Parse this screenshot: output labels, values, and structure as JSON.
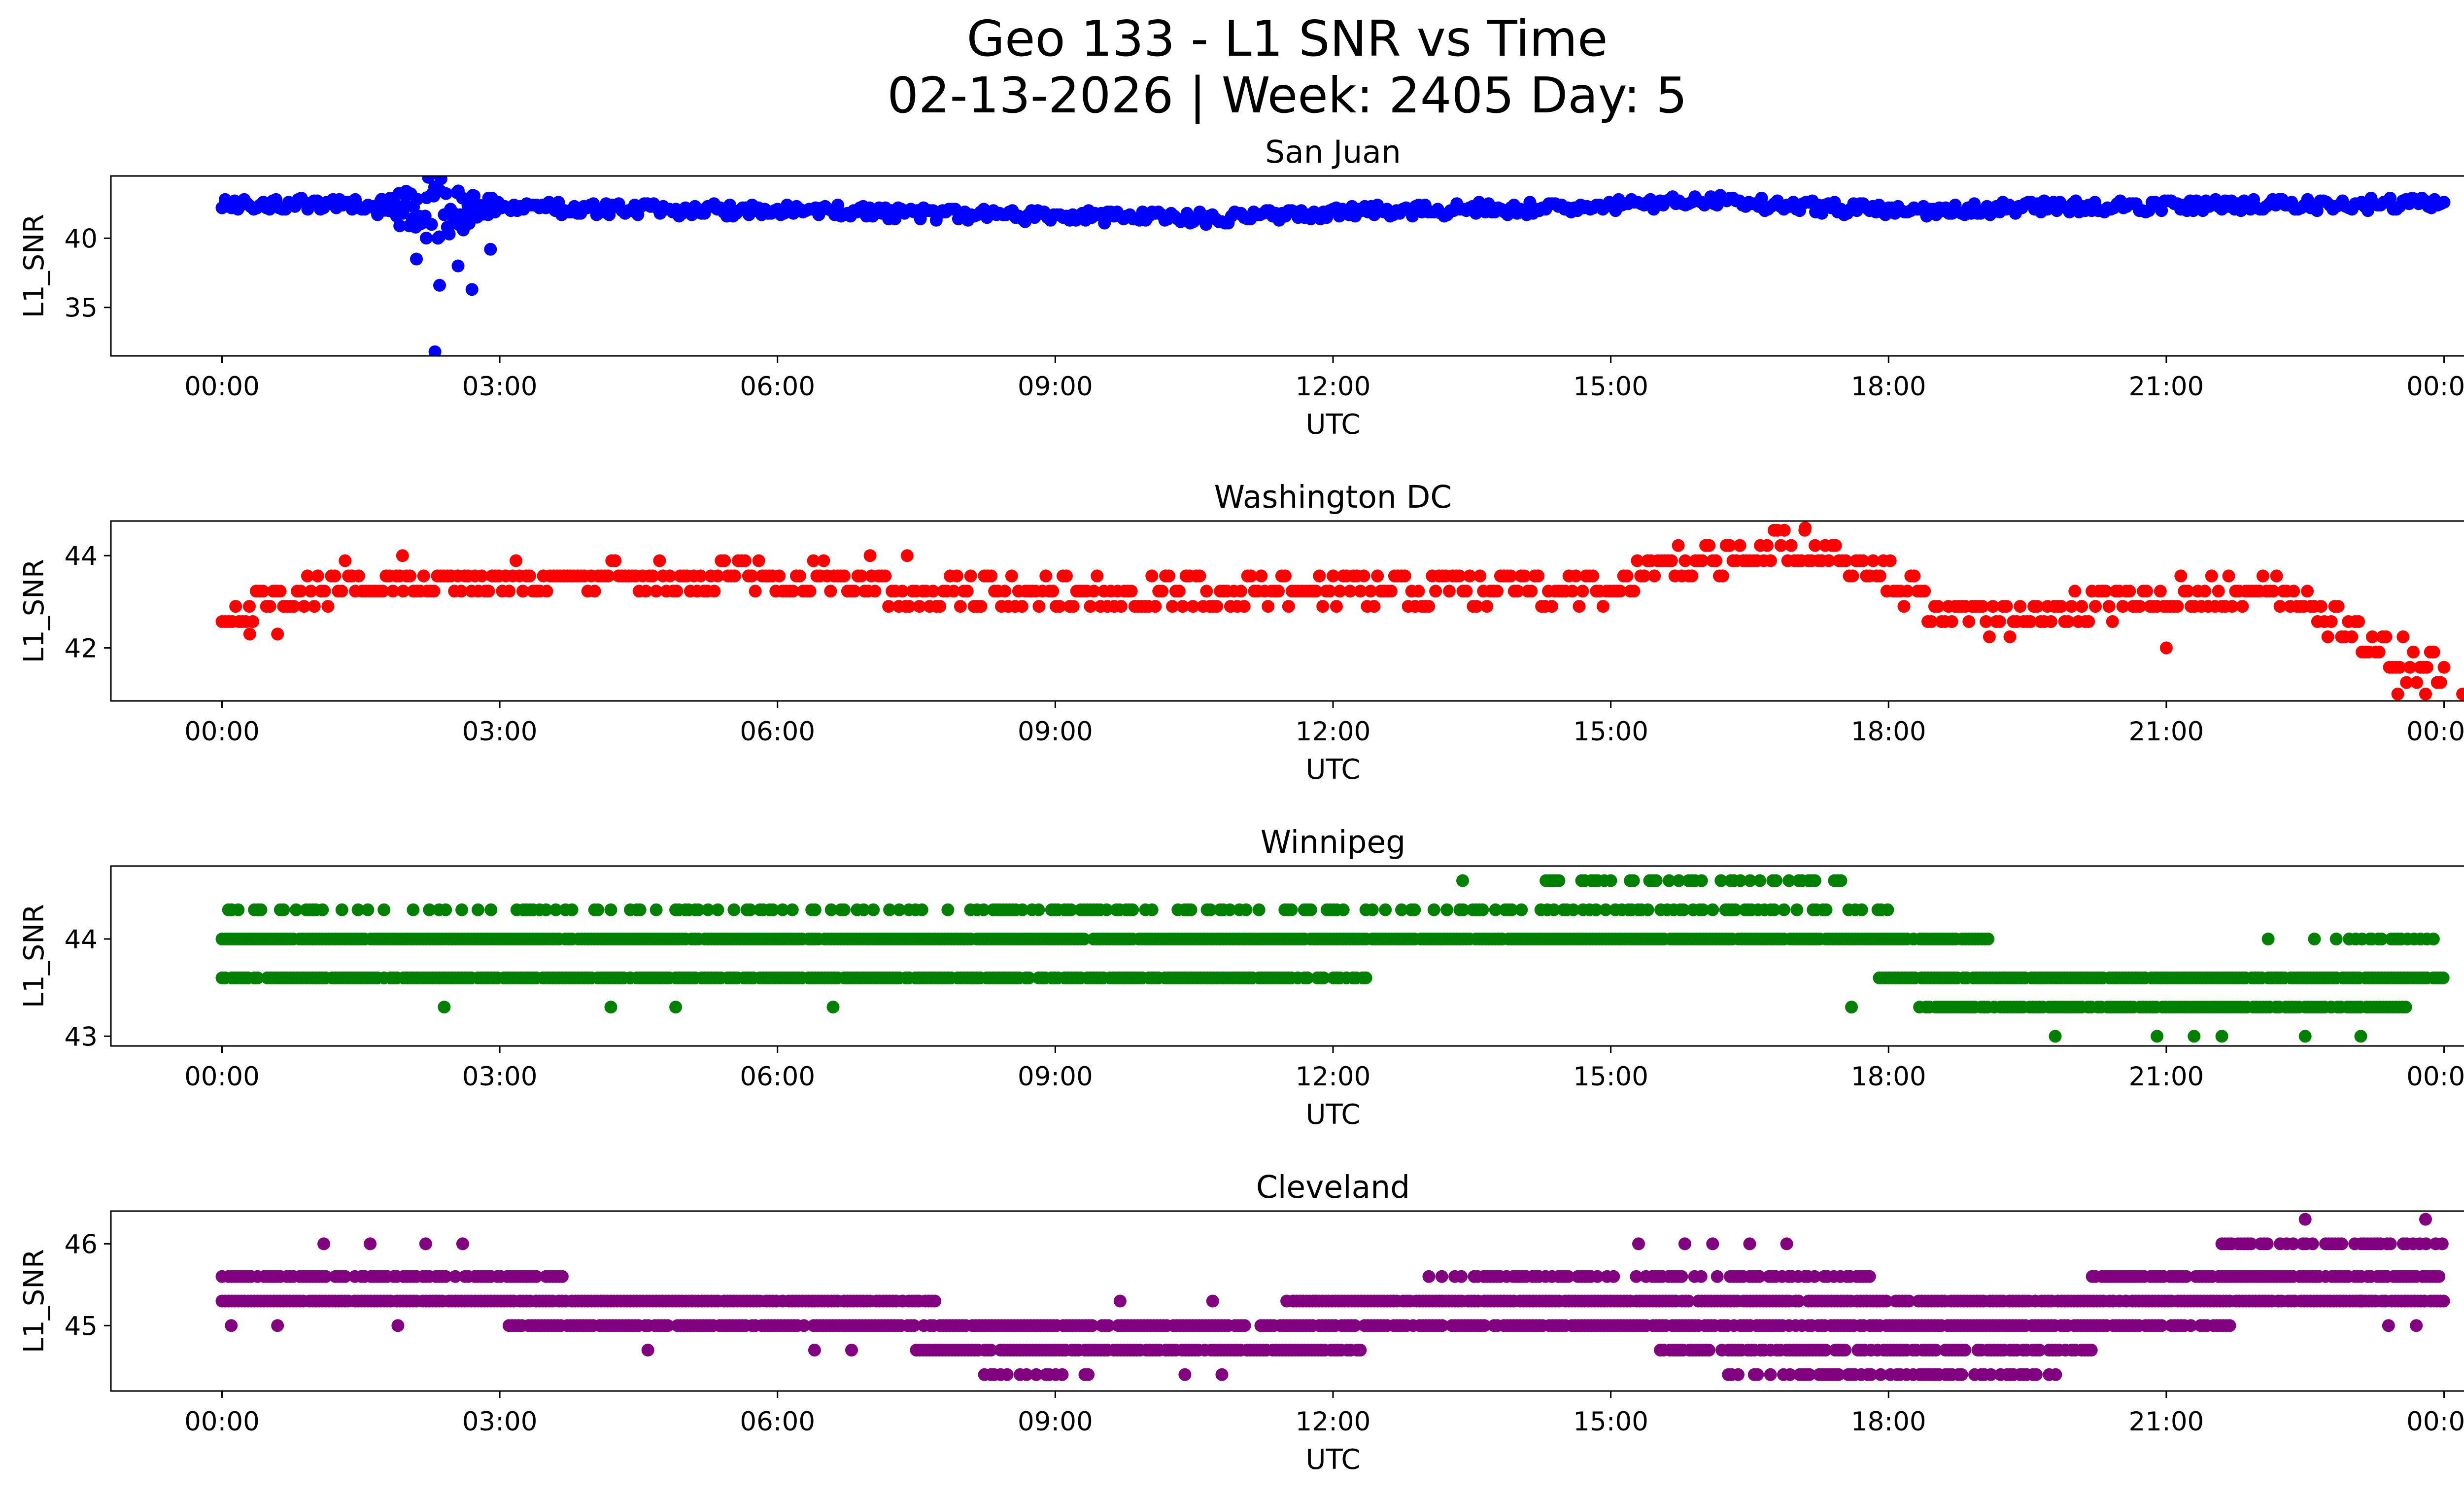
{
  "chart_data": {
    "type": "scatter",
    "title": "Geo 133 - L1 SNR vs Time",
    "subtitle": "02-13-2026 | Week: 2405 Day: 5",
    "xlabel": "UTC",
    "x_ticks": [
      "00:00",
      "03:00",
      "06:00",
      "09:00",
      "12:00",
      "15:00",
      "18:00",
      "21:00",
      "00:00"
    ],
    "x_unit": "hours UTC",
    "xlim": [
      -1.2,
      25.2
    ],
    "panels": [
      {
        "title": "San Juan",
        "ylabel": "L1_SNR",
        "color": "#0000ff",
        "ylim": [
          31.5,
          44.5
        ],
        "yticks": [
          35,
          40
        ],
        "ytick_labels": [
          "35",
          "40"
        ],
        "trend": [
          [
            0,
            42.5
          ],
          [
            1.5,
            42.5
          ],
          [
            3,
            42.2
          ],
          [
            6,
            42.0
          ],
          [
            9,
            41.6
          ],
          [
            10.5,
            41.4
          ],
          [
            12,
            41.9
          ],
          [
            15,
            42.3
          ],
          [
            16,
            42.8
          ],
          [
            17,
            42.3
          ],
          [
            18,
            42.0
          ],
          [
            20,
            42.3
          ],
          [
            24,
            42.5
          ]
        ],
        "spread": 0.45,
        "quant": 0.1,
        "n_points": 700,
        "disturbance": {
          "start": 1.6,
          "end": 3.0,
          "center": 2.3,
          "amplitude": 2.8
        },
        "outliers": [
          [
            2.3,
            31.8
          ],
          [
            2.35,
            36.6
          ],
          [
            2.7,
            36.3
          ],
          [
            2.55,
            38.0
          ],
          [
            2.1,
            38.5
          ],
          [
            2.9,
            39.2
          ]
        ]
      },
      {
        "title": "Washington DC",
        "ylabel": "L1_SNR",
        "color": "#ff0000",
        "ylim": [
          40.85,
          44.75
        ],
        "yticks": [
          42,
          44
        ],
        "ytick_labels": [
          "42",
          "44"
        ],
        "trend": [
          [
            0,
            42.8
          ],
          [
            1.2,
            43.4
          ],
          [
            5,
            43.5
          ],
          [
            6,
            43.6
          ],
          [
            7.3,
            43.3
          ],
          [
            9,
            43.1
          ],
          [
            12,
            43.3
          ],
          [
            15,
            43.3
          ],
          [
            15.5,
            43.8
          ],
          [
            17,
            44.2
          ],
          [
            18,
            43.6
          ],
          [
            18.6,
            42.8
          ],
          [
            19.5,
            42.5
          ],
          [
            20,
            42.9
          ],
          [
            21,
            43.1
          ],
          [
            22.3,
            43.2
          ],
          [
            23.3,
            42.0
          ],
          [
            24,
            41.4
          ]
        ],
        "spread": 0.35,
        "quant": 0.33,
        "n_points": 650,
        "outliers": [
          [
            1.95,
            44.0
          ],
          [
            7.0,
            44.0
          ],
          [
            7.4,
            44.0
          ],
          [
            17.1,
            44.6
          ],
          [
            21,
            42.0
          ],
          [
            23.5,
            41.0
          ],
          [
            23.8,
            41.0
          ],
          [
            24.2,
            41.0
          ],
          [
            0.3,
            42.3
          ],
          [
            0.6,
            42.3
          ]
        ]
      },
      {
        "title": "Winnipeg",
        "ylabel": "L1_SNR",
        "color": "#008000",
        "ylim": [
          42.9,
          44.75
        ],
        "yticks": [
          43,
          44
        ],
        "ytick_labels": [
          "43",
          "44"
        ],
        "levels": [
          {
            "y": 44.6,
            "start": 14.3,
            "end": 17.7,
            "density": 0.45
          },
          {
            "y": 44.3,
            "start": 0,
            "end": 18.0,
            "density": 0.4
          },
          {
            "y": 44.0,
            "start": 0,
            "end": 19.1,
            "density": 0.95
          },
          {
            "y": 44.0,
            "start": 22.8,
            "end": 24.0,
            "density": 0.5
          },
          {
            "y": 43.6,
            "start": 0,
            "end": 12.4,
            "density": 0.9
          },
          {
            "y": 43.6,
            "start": 17.9,
            "end": 24.0,
            "density": 0.95
          },
          {
            "y": 43.3,
            "start": 18.3,
            "end": 23.6,
            "density": 0.85
          }
        ],
        "outliers": [
          [
            13.4,
            44.6
          ],
          [
            2.4,
            43.3
          ],
          [
            4.2,
            43.3
          ],
          [
            4.9,
            43.3
          ],
          [
            6.6,
            43.3
          ],
          [
            17.6,
            43.3
          ],
          [
            19.8,
            43.0
          ],
          [
            20.9,
            43.0
          ],
          [
            21.3,
            43.0
          ],
          [
            21.6,
            43.0
          ],
          [
            22.5,
            43.0
          ],
          [
            23.1,
            43.0
          ],
          [
            22.1,
            44.0
          ],
          [
            22.6,
            44.0
          ],
          [
            23.2,
            44.0
          ],
          [
            0.1,
            44.3
          ],
          [
            0.4,
            44.3
          ],
          [
            0.8,
            44.3
          ]
        ]
      },
      {
        "title": "Cleveland",
        "ylabel": "L1_SNR",
        "color": "#800080",
        "ylim": [
          44.2,
          46.4
        ],
        "yticks": [
          45,
          46
        ],
        "ytick_labels": [
          "45",
          "46"
        ],
        "levels": [
          {
            "y": 46.0,
            "start": 21.6,
            "end": 24.0,
            "density": 0.7
          },
          {
            "y": 45.6,
            "start": 0,
            "end": 3.7,
            "density": 0.85
          },
          {
            "y": 45.6,
            "start": 13.0,
            "end": 17.8,
            "density": 0.6
          },
          {
            "y": 45.6,
            "start": 20.2,
            "end": 24.0,
            "density": 0.85
          },
          {
            "y": 45.3,
            "start": 0,
            "end": 7.7,
            "density": 0.95
          },
          {
            "y": 45.3,
            "start": 11.5,
            "end": 24.0,
            "density": 0.9
          },
          {
            "y": 45.0,
            "start": 3.1,
            "end": 21.7,
            "density": 0.85
          },
          {
            "y": 44.7,
            "start": 7.5,
            "end": 12.3,
            "density": 0.9
          },
          {
            "y": 44.7,
            "start": 15.5,
            "end": 20.2,
            "density": 0.7
          },
          {
            "y": 44.4,
            "start": 8.2,
            "end": 9.6,
            "density": 0.5
          },
          {
            "y": 44.4,
            "start": 16.2,
            "end": 19.9,
            "density": 0.5
          }
        ],
        "outliers": [
          [
            1.1,
            46.0
          ],
          [
            1.6,
            46.0
          ],
          [
            2.2,
            46.0
          ],
          [
            2.6,
            46.0
          ],
          [
            15.3,
            46.0
          ],
          [
            15.8,
            46.0
          ],
          [
            16.1,
            46.0
          ],
          [
            16.5,
            46.0
          ],
          [
            16.9,
            46.0
          ],
          [
            22.5,
            46.3
          ],
          [
            23.8,
            46.3
          ],
          [
            4.6,
            44.7
          ],
          [
            6.4,
            44.7
          ],
          [
            6.8,
            44.7
          ],
          [
            10.4,
            44.4
          ],
          [
            10.8,
            44.4
          ],
          [
            1.9,
            45.0
          ],
          [
            0.1,
            45.0
          ],
          [
            0.6,
            45.0
          ],
          [
            9.7,
            45.3
          ],
          [
            10.7,
            45.3
          ],
          [
            23.1,
            45.3
          ],
          [
            23.4,
            45.0
          ],
          [
            23.7,
            45.0
          ]
        ]
      }
    ]
  }
}
